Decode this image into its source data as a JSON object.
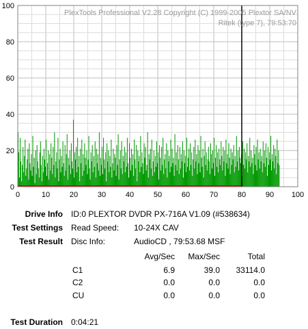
{
  "chart_data": {
    "type": "bar",
    "watermark_line1": "PlexTools Professional V2.28 Copyright (C) 1999-2005 Plextor SA/NV",
    "watermark_line2": "Ritek (type 7), 79:53:70",
    "xlim": [
      0,
      100
    ],
    "ylim": [
      0,
      100
    ],
    "x_ticks": [
      0,
      10,
      20,
      30,
      40,
      50,
      60,
      70,
      80,
      90,
      100
    ],
    "y_ticks": [
      0,
      20,
      40,
      60,
      80,
      100
    ],
    "grid": true,
    "x_end_marker": 80,
    "series": [
      {
        "color": "#009900",
        "x_step": 0.25,
        "values": [
          30,
          19,
          5,
          27,
          14,
          3,
          12,
          22,
          8,
          17,
          26,
          6,
          10,
          15,
          21,
          4,
          24,
          13,
          9,
          18,
          6,
          28,
          11,
          16,
          2,
          20,
          7,
          23,
          14,
          10,
          5,
          19,
          25,
          12,
          3,
          17,
          8,
          21,
          15,
          11,
          26,
          6,
          13,
          20,
          4,
          18,
          9,
          24,
          16,
          7,
          22,
          12,
          30,
          5,
          14,
          19,
          10,
          27,
          3,
          15,
          21,
          8,
          17,
          11,
          25,
          13,
          6,
          23,
          9,
          18,
          29,
          4,
          16,
          12,
          20,
          7,
          24,
          14,
          10,
          37,
          5,
          19,
          15,
          22,
          8,
          27,
          11,
          17,
          3,
          21,
          13,
          26,
          6,
          18,
          9,
          24,
          16,
          12,
          20,
          7,
          15,
          28,
          10,
          4,
          19,
          14,
          23,
          8,
          17,
          11,
          25,
          5,
          21,
          13,
          18,
          9,
          30,
          6,
          16,
          12,
          22,
          7,
          27,
          15,
          10,
          19,
          3,
          24,
          14,
          20,
          8,
          17,
          11,
          26,
          5,
          13,
          21,
          9,
          18,
          16,
          6,
          23,
          12,
          29,
          4,
          15,
          20,
          10,
          25,
          7,
          17,
          14,
          22,
          8,
          19,
          11,
          27,
          13,
          5,
          24,
          16,
          9,
          21,
          12,
          18,
          6,
          26,
          15,
          10,
          23,
          3,
          20,
          14,
          17,
          8,
          28,
          11,
          19,
          13,
          7,
          24,
          16,
          22,
          9,
          12,
          30,
          5,
          18,
          15,
          21,
          10,
          26,
          6,
          14,
          20,
          8,
          17,
          11,
          25,
          13,
          19,
          4,
          23,
          16,
          9,
          22,
          12,
          27,
          7,
          15,
          18,
          10,
          24,
          5,
          20,
          14,
          17,
          8,
          26,
          11,
          21,
          13,
          16,
          6,
          29,
          12,
          19,
          9,
          23,
          15,
          7,
          22,
          10,
          18,
          14,
          25,
          5,
          20,
          13,
          17,
          8,
          27,
          11,
          16,
          21,
          9,
          24,
          12,
          19,
          6,
          15,
          22,
          10,
          26,
          14,
          18,
          7,
          23,
          13,
          20,
          8,
          28,
          16,
          11,
          21,
          5,
          17,
          25,
          12,
          19,
          9,
          15,
          22,
          14,
          7,
          24,
          18,
          10,
          20,
          13,
          27,
          6,
          16,
          23,
          11,
          19,
          8,
          21,
          15,
          12,
          25,
          17,
          9,
          22,
          14,
          20,
          6,
          26,
          13,
          18,
          10,
          24,
          16,
          7,
          21,
          12,
          19,
          15,
          23,
          8,
          17,
          11,
          28,
          14,
          20,
          9,
          22,
          16,
          13,
          18,
          6,
          25,
          12,
          21,
          10,
          19,
          15,
          24,
          8,
          17,
          14,
          27,
          11,
          20,
          13,
          16,
          7,
          23,
          18,
          12,
          22,
          9,
          26,
          15,
          19,
          10,
          21,
          14,
          17,
          8,
          25,
          13,
          20,
          11,
          24,
          16,
          6,
          22,
          12,
          19,
          15,
          28,
          9,
          18,
          14,
          23,
          10,
          21,
          17,
          7,
          26,
          13,
          20,
          12
        ]
      }
    ]
  },
  "info": {
    "drive_info_label": "Drive Info",
    "drive_info_value": "ID:0 PLEXTOR DVDR PX-716A V1.09 (#538634)",
    "test_settings_label": "Test Settings",
    "read_speed_label": "Read Speed:",
    "read_speed_value": "10-24X CAV",
    "test_result_label": "Test Result",
    "disc_info_label": "Disc Info:",
    "disc_info_value": "AudioCD , 79:53.68 MSF",
    "col_avg": "Avg/Sec",
    "col_max": "Max/Sec",
    "col_total": "Total",
    "rows": [
      {
        "name": "C1",
        "avg": "6.9",
        "max": "39.0",
        "total": "33114.0"
      },
      {
        "name": "C2",
        "avg": "0.0",
        "max": "0.0",
        "total": "0.0"
      },
      {
        "name": "CU",
        "avg": "0.0",
        "max": "0.0",
        "total": "0.0"
      }
    ],
    "test_duration_label": "Test Duration",
    "test_duration_value": "0:04:21"
  }
}
